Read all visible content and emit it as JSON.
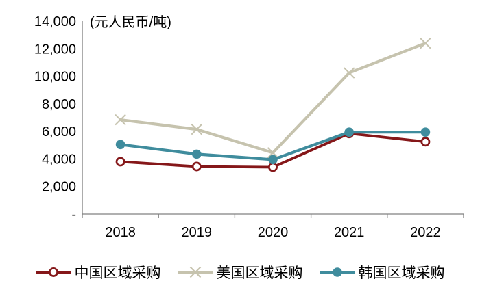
{
  "chart_data": {
    "type": "line",
    "title": "",
    "ylabel": "(元人民币/吨)",
    "xlabel": "",
    "categories": [
      "2018",
      "2019",
      "2020",
      "2021",
      "2022"
    ],
    "series": [
      {
        "name": "中国区域采购",
        "color": "#851719",
        "marker": "open-circle",
        "line_width": 3.8,
        "values": [
          3800,
          3450,
          3400,
          5850,
          5250
        ]
      },
      {
        "name": "美国区域采购",
        "color": "#C6C3AE",
        "marker": "x",
        "line_width": 4.2,
        "values": [
          6850,
          6150,
          4450,
          10250,
          12400
        ]
      },
      {
        "name": "韩国区域采购",
        "color": "#3F8C9D",
        "marker": "filled-circle",
        "line_width": 4.2,
        "values": [
          5050,
          4350,
          3950,
          5950,
          5950
        ]
      }
    ],
    "ylim": [
      0,
      14000
    ],
    "y_ticks": [
      {
        "label": "14,000",
        "value": 14000
      },
      {
        "label": "12,000",
        "value": 12000
      },
      {
        "label": "10,000",
        "value": 10000
      },
      {
        "label": "8,000",
        "value": 8000
      },
      {
        "label": "6,000",
        "value": 6000
      },
      {
        "label": "4,000",
        "value": 4000
      },
      {
        "label": "2,000",
        "value": 2000
      },
      {
        "label": "-",
        "value": 0
      }
    ],
    "grid": false,
    "legend_position": "bottom"
  },
  "style": {
    "axis_color": "#808080",
    "text_color": "#000000",
    "background": "#FFFFFF"
  }
}
